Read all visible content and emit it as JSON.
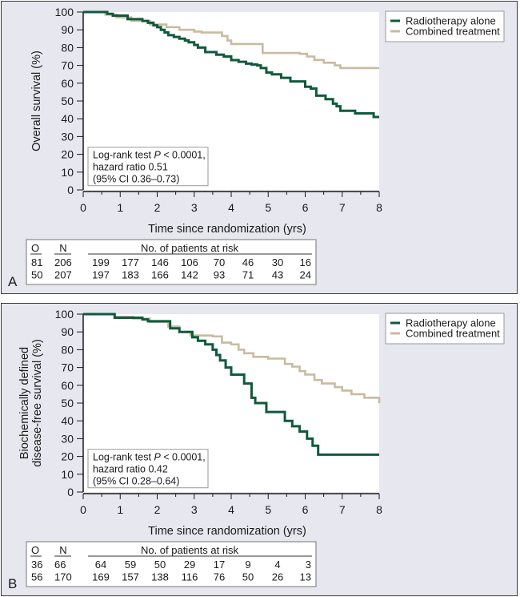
{
  "colors": {
    "radiotherapy": "#0f5a3c",
    "combined": "#c8bba0",
    "panel_bg": "#e7e7ef",
    "plot_bg": "#ffffff"
  },
  "chart_data": [
    {
      "id": "A",
      "type": "line",
      "step": true,
      "panel_letter": "A",
      "title": "",
      "xlabel": "Time since randomization (yrs)",
      "ylabel": "Overall survival (%)",
      "xlim": [
        0,
        8
      ],
      "ylim": [
        0,
        100
      ],
      "xticks": [
        "0",
        "1",
        "2",
        "3",
        "4",
        "5",
        "6",
        "7",
        "8"
      ],
      "yticks": [
        "0",
        "10",
        "20",
        "30",
        "40",
        "50",
        "60",
        "70",
        "80",
        "90",
        "100"
      ],
      "grid": false,
      "legend": {
        "position": "top-right-outside",
        "entries": [
          "Radiotherapy alone",
          "Combined treatment"
        ]
      },
      "annotation": {
        "line1_prefix": "Log-rank test ",
        "line1_p": "P",
        "line1_suffix": " < 0.0001,",
        "line2": "hazard ratio 0.51",
        "line3": "(95% CI 0.36–0.73)"
      },
      "series": [
        {
          "name": "Radiotherapy alone",
          "color_key": "radiotherapy",
          "x": [
            0,
            0.65,
            0.8,
            1.2,
            1.6,
            1.75,
            1.9,
            2.0,
            2.1,
            2.2,
            2.3,
            2.45,
            2.6,
            2.75,
            2.85,
            3.0,
            3.1,
            3.3,
            3.6,
            3.8,
            4.0,
            4.2,
            4.4,
            4.55,
            4.7,
            4.8,
            4.95,
            5.1,
            5.35,
            5.6,
            6.0,
            6.15,
            6.3,
            6.55,
            6.75,
            6.85,
            6.95,
            7.35,
            7.85,
            8.0
          ],
          "y": [
            100,
            99,
            98,
            96,
            95,
            94,
            92.5,
            91.5,
            90,
            88.5,
            87,
            86,
            85,
            84,
            83,
            81.5,
            80,
            77.5,
            76,
            75,
            73,
            72,
            71,
            70.5,
            70,
            68.5,
            66,
            65,
            63,
            61,
            58,
            57,
            53,
            51,
            48.5,
            47,
            44.5,
            43,
            41,
            41
          ]
        },
        {
          "name": "Combined treatment",
          "color_key": "combined",
          "x": [
            0,
            0.6,
            0.9,
            1.3,
            1.8,
            2.25,
            2.6,
            3.0,
            3.2,
            3.75,
            3.9,
            4.0,
            4.85,
            5.85,
            6.05,
            6.25,
            6.5,
            6.8,
            6.95,
            8.0
          ],
          "y": [
            100,
            98.5,
            97,
            95,
            93,
            91.5,
            90,
            89,
            88.5,
            86.5,
            84,
            82,
            77,
            76.5,
            75,
            73,
            71.5,
            70,
            68.5,
            68.5
          ]
        }
      ],
      "risk_table": {
        "header_o": "O",
        "header_n": "N",
        "header_risk": "No. of patients at risk",
        "rows": [
          {
            "o": "81",
            "n": "206",
            "at_risk": [
              "199",
              "177",
              "146",
              "106",
              "70",
              "46",
              "30",
              "16"
            ]
          },
          {
            "o": "50",
            "n": "207",
            "at_risk": [
              "197",
              "183",
              "166",
              "142",
              "93",
              "71",
              "43",
              "24"
            ]
          }
        ]
      }
    },
    {
      "id": "B",
      "type": "line",
      "step": true,
      "panel_letter": "B",
      "title": "",
      "xlabel": "Time since randomization (yrs)",
      "ylabel_line1": "Biochemically defined",
      "ylabel_line2": "disease-free survival (%)",
      "xlim": [
        0,
        8
      ],
      "ylim": [
        0,
        100
      ],
      "xticks": [
        "0",
        "1",
        "2",
        "3",
        "4",
        "5",
        "6",
        "7",
        "8"
      ],
      "yticks": [
        "0",
        "10",
        "20",
        "30",
        "40",
        "50",
        "60",
        "70",
        "80",
        "90",
        "100"
      ],
      "grid": false,
      "legend": {
        "position": "top-right-outside",
        "entries": [
          "Radiotherapy alone",
          "Combined treatment"
        ]
      },
      "annotation": {
        "line1_prefix": "Log-rank test ",
        "line1_p": "P",
        "line1_suffix": " < 0.0001,",
        "line2": "hazard ratio 0.42",
        "line3": "(95% CI 0.28–0.64)"
      },
      "series": [
        {
          "name": "Radiotherapy alone",
          "color_key": "radiotherapy",
          "x": [
            0,
            0.85,
            1.6,
            1.75,
            2.35,
            2.6,
            2.95,
            3.1,
            3.3,
            3.5,
            3.6,
            3.7,
            3.85,
            4.0,
            4.35,
            4.55,
            4.65,
            4.95,
            5.45,
            5.65,
            5.85,
            6.05,
            6.2,
            6.35,
            8.0
          ],
          "y": [
            100,
            98,
            97,
            96,
            92,
            90,
            87,
            85,
            83,
            80,
            77,
            74,
            70,
            66,
            61,
            53,
            50,
            45,
            40,
            37,
            34,
            30,
            26,
            21,
            21
          ]
        },
        {
          "name": "Combined treatment",
          "color_key": "combined",
          "x": [
            0,
            0.85,
            1.35,
            1.8,
            2.3,
            2.6,
            2.9,
            3.5,
            3.75,
            4.0,
            4.2,
            4.35,
            4.6,
            5.0,
            5.45,
            5.65,
            5.85,
            6.0,
            6.25,
            6.45,
            6.8,
            7.0,
            7.25,
            7.6,
            8.0
          ],
          "y": [
            100,
            98.5,
            97.5,
            95.5,
            93,
            90,
            88,
            87.5,
            84,
            83,
            80,
            78,
            76,
            75,
            72,
            70.5,
            68,
            66,
            63,
            61,
            59,
            57,
            55,
            53,
            50
          ]
        }
      ],
      "risk_table": {
        "header_o": "O",
        "header_n": "N",
        "header_risk": "No. of patients at risk",
        "rows": [
          {
            "o": "36",
            "n": "66",
            "at_risk": [
              "64",
              "59",
              "50",
              "29",
              "17",
              "9",
              "4",
              "3"
            ]
          },
          {
            "o": "56",
            "n": "170",
            "at_risk": [
              "169",
              "157",
              "138",
              "116",
              "76",
              "50",
              "26",
              "13"
            ]
          }
        ]
      }
    }
  ]
}
